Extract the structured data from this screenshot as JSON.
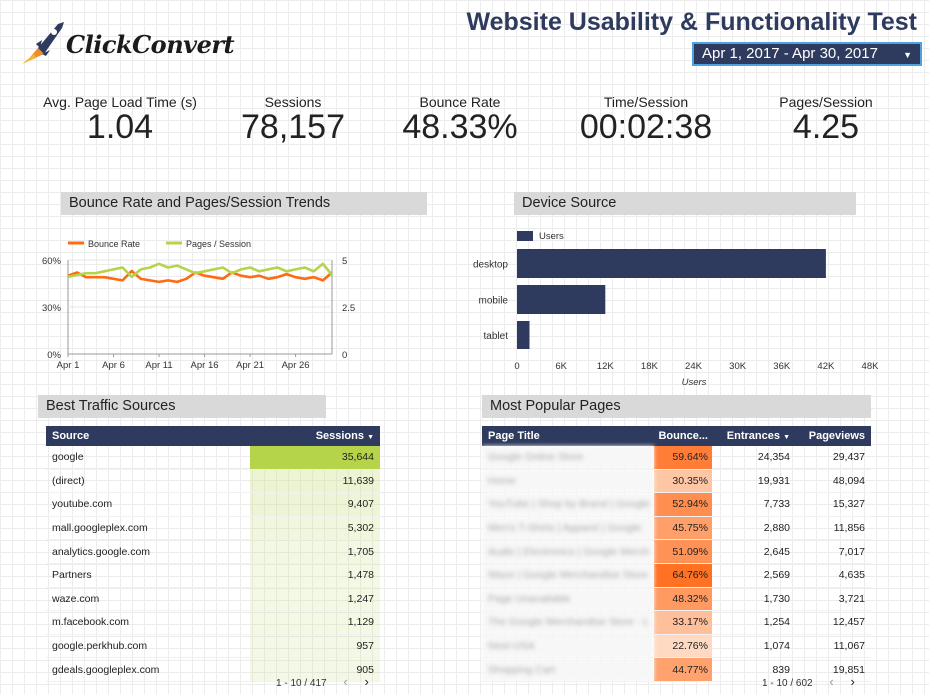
{
  "logo": {
    "text": "ClickConvert"
  },
  "header": {
    "title": "Website Usability & Functionality Test",
    "date_range": "Apr 1, 2017 - Apr 30, 2017"
  },
  "kpis": [
    {
      "label": "Avg. Page Load Time (s)",
      "value": "1.04"
    },
    {
      "label": "Sessions",
      "value": "78,157"
    },
    {
      "label": "Bounce Rate",
      "value": "48.33%"
    },
    {
      "label": "Time/Session",
      "value": "00:02:38"
    },
    {
      "label": "Pages/Session",
      "value": "4.25"
    }
  ],
  "panels": {
    "trend": "Bounce Rate and Pages/Session Trends",
    "device": "Device Source",
    "sources": "Best Traffic Sources",
    "pages": "Most Popular Pages"
  },
  "colors": {
    "navy": "#2e3b5e",
    "orange": "#ff6a13",
    "green": "#b5d44a",
    "accent_border": "#4da3e0"
  },
  "chart_data": [
    {
      "type": "line",
      "legend": [
        "Bounce Rate",
        "Pages / Session"
      ],
      "x_ticks": [
        "Apr 1",
        "Apr 6",
        "Apr 11",
        "Apr 16",
        "Apr 21",
        "Apr 26"
      ],
      "y_left_ticks": [
        "60%",
        "30%",
        "0%"
      ],
      "y_right_ticks": [
        "5",
        "2.5",
        "0"
      ],
      "ylim_left": [
        0,
        60
      ],
      "ylim_right": [
        0,
        5
      ],
      "series": [
        {
          "name": "Bounce Rate",
          "axis": "left",
          "values": [
            50,
            52,
            49,
            49,
            49,
            48,
            47,
            53,
            48,
            47,
            46,
            47,
            46,
            48,
            52,
            50,
            49,
            48,
            52,
            50,
            49,
            50,
            48,
            49,
            51,
            49,
            48,
            49,
            47,
            52
          ]
        },
        {
          "name": "Pages / Session",
          "axis": "right",
          "values": [
            4.1,
            4.2,
            4.3,
            4.3,
            4.4,
            4.5,
            4.6,
            4.1,
            4.5,
            4.6,
            4.8,
            4.6,
            4.7,
            4.5,
            4.3,
            4.4,
            4.5,
            4.6,
            4.3,
            4.5,
            4.6,
            4.4,
            4.5,
            4.6,
            4.4,
            4.5,
            4.6,
            4.4,
            4.8,
            4.2
          ]
        }
      ]
    },
    {
      "type": "bar",
      "orientation": "horizontal",
      "legend": [
        "Users"
      ],
      "categories": [
        "desktop",
        "mobile",
        "tablet"
      ],
      "values": [
        42000,
        12000,
        1700
      ],
      "x_ticks": [
        "0",
        "6K",
        "12K",
        "18K",
        "24K",
        "30K",
        "36K",
        "42K",
        "48K"
      ],
      "xlim": [
        0,
        48000
      ],
      "xlabel": "Users"
    }
  ],
  "sources_table": {
    "headers": [
      "Source",
      "Sessions"
    ],
    "sort_icon": "caret-down-icon",
    "rows": [
      {
        "source": "google",
        "sessions": "35,644",
        "v": 35644
      },
      {
        "source": "(direct)",
        "sessions": "11,639",
        "v": 11639
      },
      {
        "source": "youtube.com",
        "sessions": "9,407",
        "v": 9407
      },
      {
        "source": "mall.googleplex.com",
        "sessions": "5,302",
        "v": 5302
      },
      {
        "source": "analytics.google.com",
        "sessions": "1,705",
        "v": 1705
      },
      {
        "source": "Partners",
        "sessions": "1,478",
        "v": 1478
      },
      {
        "source": "waze.com",
        "sessions": "1,247",
        "v": 1247
      },
      {
        "source": "m.facebook.com",
        "sessions": "1,129",
        "v": 1129
      },
      {
        "source": "google.perkhub.com",
        "sessions": "957",
        "v": 957
      },
      {
        "source": "gdeals.googleplex.com",
        "sessions": "905",
        "v": 905
      }
    ],
    "pager": "1 - 10 / 417"
  },
  "pages_table": {
    "headers": [
      "Page Title",
      "Bounce...",
      "Entrances",
      "Pageviews"
    ],
    "rows": [
      {
        "title": "Google Online Store",
        "bounce": "59.64%",
        "b": 59.64,
        "entrances": "24,354",
        "pageviews": "29,437"
      },
      {
        "title": "Home",
        "bounce": "30.35%",
        "b": 30.35,
        "entrances": "19,931",
        "pageviews": "48,094"
      },
      {
        "title": "YouTube | Shop by Brand | Google",
        "bounce": "52.94%",
        "b": 52.94,
        "entrances": "7,733",
        "pageviews": "15,327"
      },
      {
        "title": "Men's T-Shirts | Apparel | Google",
        "bounce": "45.75%",
        "b": 45.75,
        "entrances": "2,880",
        "pageviews": "11,856"
      },
      {
        "title": "Audio | Electronics | Google Merch",
        "bounce": "51.09%",
        "b": 51.09,
        "entrances": "2,645",
        "pageviews": "7,017"
      },
      {
        "title": "Waze | Google Merchandise Store",
        "bounce": "64.76%",
        "b": 64.76,
        "entrances": "2,569",
        "pageviews": "4,635"
      },
      {
        "title": "Page Unavailable",
        "bounce": "48.32%",
        "b": 48.32,
        "entrances": "1,730",
        "pageviews": "3,721"
      },
      {
        "title": "The Google Merchandise Store - L",
        "bounce": "33.17%",
        "b": 33.17,
        "entrances": "1,254",
        "pageviews": "12,457"
      },
      {
        "title": "Nest-USA",
        "bounce": "22.76%",
        "b": 22.76,
        "entrances": "1,074",
        "pageviews": "11,067"
      },
      {
        "title": "Shopping Cart",
        "bounce": "44.77%",
        "b": 44.77,
        "entrances": "839",
        "pageviews": "19,851"
      }
    ],
    "pager": "1 - 10 / 602"
  }
}
